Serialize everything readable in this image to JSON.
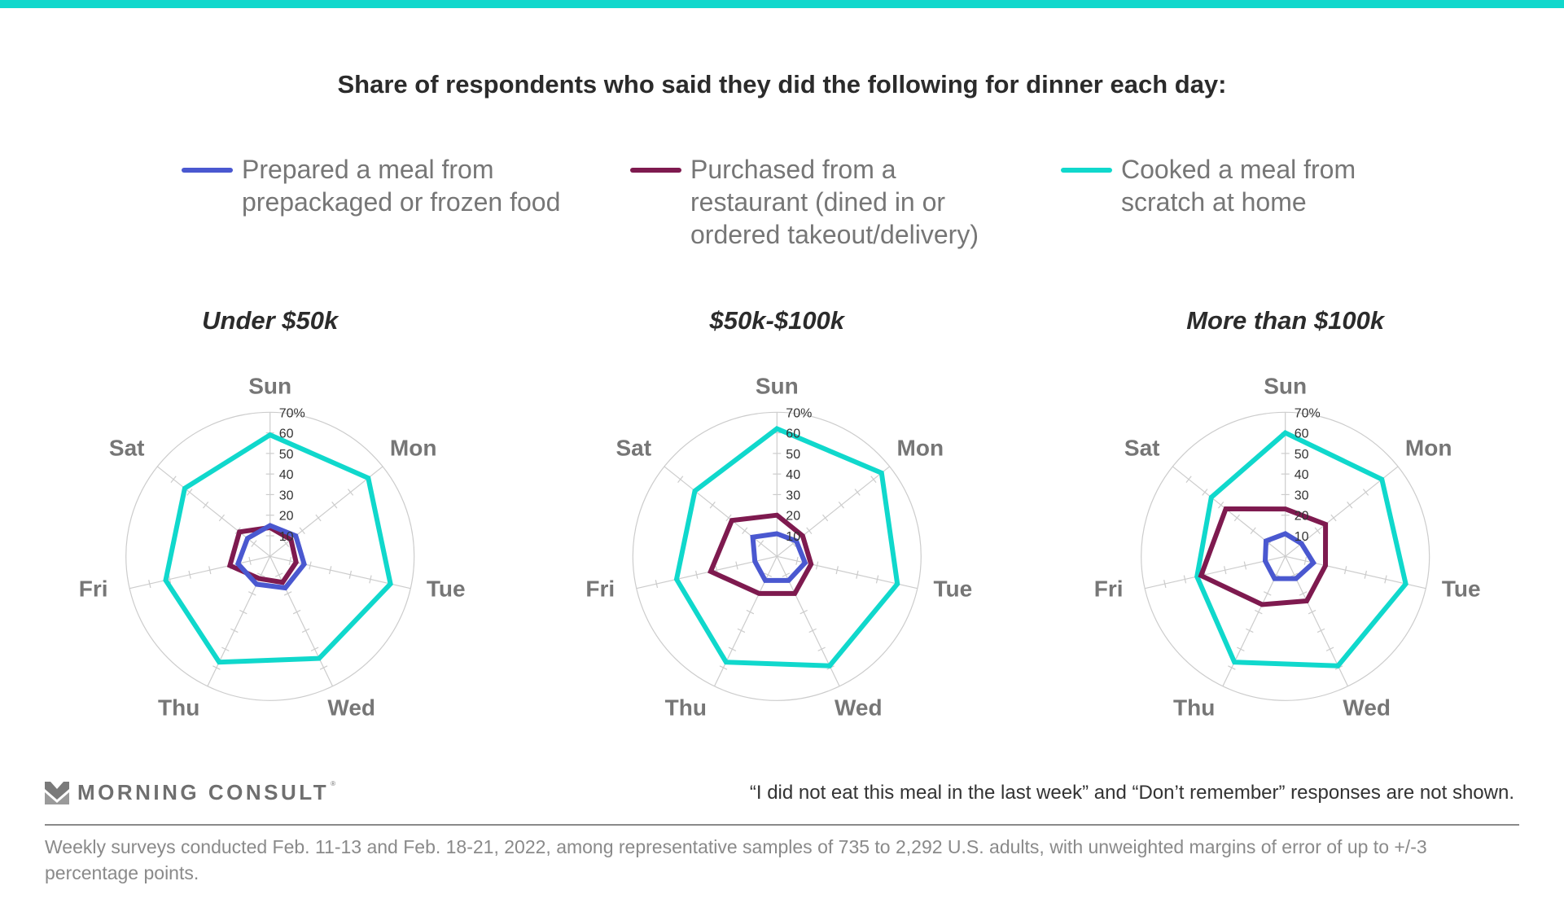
{
  "header": {
    "title": "Share of respondents who said they did the following for dinner each day:"
  },
  "legend": [
    {
      "label": "Prepared a meal from\nprepackaged or frozen food",
      "color": "#4a58d0",
      "series": "prepackaged"
    },
    {
      "label": "Purchased from a\nrestaurant (dined in or\nordered takeout/delivery)",
      "color": "#7e1a4f",
      "series": "restaurant"
    },
    {
      "label": "Cooked a meal from\nscratch at home",
      "color": "#10d8cc",
      "series": "scratch"
    }
  ],
  "colors": {
    "accent_bar": "#10d8cc",
    "grid": "#cccccc"
  },
  "chart_data": [
    {
      "type": "radar",
      "title": "Under $50k",
      "categories": [
        "Sun",
        "Mon",
        "Tue",
        "Wed",
        "Thu",
        "Fri",
        "Sat"
      ],
      "rlim": [
        0,
        70
      ],
      "r_ticks": [
        "10",
        "20",
        "30",
        "40",
        "50",
        "60",
        "70%"
      ],
      "series": [
        {
          "name": "Cooked a meal from scratch at home",
          "color": "#10d8cc",
          "values": [
            59,
            61,
            60,
            55,
            57,
            52,
            53
          ]
        },
        {
          "name": "Purchased from a restaurant (dined in or ordered takeout/delivery)",
          "color": "#7e1a4f",
          "values": [
            14,
            13,
            13,
            14,
            12,
            20,
            19
          ]
        },
        {
          "name": "Prepared a meal from prepackaged or frozen food",
          "color": "#4a58d0",
          "values": [
            15,
            16,
            17,
            17,
            15,
            16,
            14
          ]
        }
      ]
    },
    {
      "type": "radar",
      "title": "$50k-$100k",
      "categories": [
        "Sun",
        "Mon",
        "Tue",
        "Wed",
        "Thu",
        "Fri",
        "Sat"
      ],
      "rlim": [
        0,
        70
      ],
      "r_ticks": [
        "10",
        "20",
        "30",
        "40",
        "50",
        "60",
        "70%"
      ],
      "series": [
        {
          "name": "Cooked a meal from scratch at home",
          "color": "#10d8cc",
          "values": [
            62,
            65,
            60,
            59,
            57,
            50,
            51
          ]
        },
        {
          "name": "Purchased from a restaurant (dined in or ordered takeout/delivery)",
          "color": "#7e1a4f",
          "values": [
            20,
            16,
            17,
            20,
            20,
            33,
            28
          ]
        },
        {
          "name": "Prepared a meal from prepackaged or frozen food",
          "color": "#4a58d0",
          "values": [
            11,
            12,
            14,
            13,
            13,
            11,
            15
          ]
        }
      ]
    },
    {
      "type": "radar",
      "title": "More than $100k",
      "categories": [
        "Sun",
        "Mon",
        "Tue",
        "Wed",
        "Thu",
        "Fri",
        "Sat"
      ],
      "rlim": [
        0,
        70
      ],
      "r_ticks": [
        "10",
        "20",
        "30",
        "40",
        "50",
        "60",
        "70%"
      ],
      "series": [
        {
          "name": "Cooked a meal from scratch at home",
          "color": "#10d8cc",
          "values": [
            60,
            60,
            60,
            59,
            57,
            44,
            46
          ]
        },
        {
          "name": "Purchased from a restaurant (dined in or ordered takeout/delivery)",
          "color": "#7e1a4f",
          "values": [
            23,
            25,
            20,
            24,
            26,
            42,
            37
          ]
        },
        {
          "name": "Prepared a meal from prepackaged or frozen food",
          "color": "#4a58d0",
          "values": [
            11,
            10,
            14,
            12,
            12,
            10,
            12
          ]
        }
      ]
    }
  ],
  "branding": {
    "logo_text": "MORNING CONSULT",
    "logo_reg": "®",
    "logo_icon": "chevron-m-logo-icon"
  },
  "notes": {
    "exclusion_note": "“I did not eat this meal in the last week” and “Don’t remember” responses are not shown.",
    "methodology": "Weekly surveys conducted Feb. 11-13 and Feb. 18-21, 2022, among representative samples of 735 to 2,292 U.S. adults, with unweighted margins of error of up to +/-3 percentage points."
  }
}
